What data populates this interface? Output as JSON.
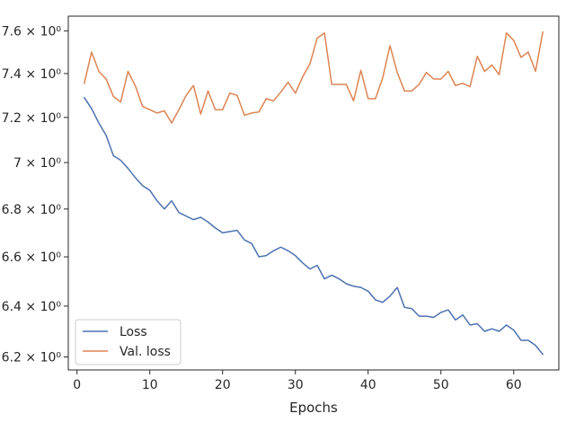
{
  "chart_data": {
    "type": "line",
    "title": "",
    "xlabel": "Epochs",
    "ylabel": "",
    "y_scale": "log",
    "xlim": [
      -1.2,
      66.2
    ],
    "ylim": [
      6.15,
      7.67
    ],
    "grid": false,
    "legend_position": "lower-left",
    "x_ticks": [
      0,
      10,
      20,
      30,
      40,
      50,
      60
    ],
    "x_tick_labels": [
      "0",
      "10",
      "20",
      "30",
      "40",
      "50",
      "60"
    ],
    "y_ticks": [
      6.2,
      6.4,
      6.6,
      6.8,
      7.0,
      7.2,
      7.4,
      7.6
    ],
    "y_tick_labels": [
      "6.2 × 10⁰",
      "6.4 × 10⁰",
      "6.6 × 10⁰",
      "6.8 × 10⁰",
      "7 × 10⁰",
      "7.2 × 10⁰",
      "7.4 × 10⁰",
      "7.6 × 10⁰"
    ],
    "x": [
      1,
      2,
      3,
      4,
      5,
      6,
      7,
      8,
      9,
      10,
      11,
      12,
      13,
      14,
      15,
      16,
      17,
      18,
      19,
      20,
      21,
      22,
      23,
      24,
      25,
      26,
      27,
      28,
      29,
      30,
      31,
      32,
      33,
      34,
      35,
      36,
      37,
      38,
      39,
      40,
      41,
      42,
      43,
      44,
      45,
      46,
      47,
      48,
      49,
      50,
      51,
      52,
      53,
      54,
      55,
      56,
      57,
      58,
      59,
      60,
      61,
      62,
      63,
      64
    ],
    "series": [
      {
        "name": "Loss",
        "color": "#4c72b0",
        "values": [
          7.29,
          7.24,
          7.175,
          7.12,
          7.03,
          7.01,
          6.975,
          6.935,
          6.9,
          6.88,
          6.835,
          6.8,
          6.835,
          6.785,
          6.77,
          6.755,
          6.765,
          6.745,
          6.72,
          6.7,
          6.705,
          6.71,
          6.67,
          6.655,
          6.6,
          6.605,
          6.625,
          6.64,
          6.625,
          6.605,
          6.575,
          6.55,
          6.565,
          6.51,
          6.525,
          6.51,
          6.49,
          6.48,
          6.475,
          6.46,
          6.425,
          6.415,
          6.44,
          6.475,
          6.395,
          6.39,
          6.36,
          6.36,
          6.355,
          6.375,
          6.385,
          6.345,
          6.365,
          6.325,
          6.33,
          6.3,
          6.31,
          6.3,
          6.325,
          6.305,
          6.265,
          6.265,
          6.245,
          6.21
        ]
      },
      {
        "name": "Val. loss",
        "color": "#dd8452",
        "values": [
          7.355,
          7.5,
          7.41,
          7.375,
          7.295,
          7.27,
          7.41,
          7.345,
          7.25,
          7.235,
          7.22,
          7.23,
          7.175,
          7.235,
          7.3,
          7.345,
          7.215,
          7.32,
          7.235,
          7.235,
          7.31,
          7.3,
          7.21,
          7.22,
          7.225,
          7.285,
          7.275,
          7.315,
          7.36,
          7.31,
          7.385,
          7.445,
          7.565,
          7.59,
          7.35,
          7.35,
          7.35,
          7.275,
          7.415,
          7.285,
          7.285,
          7.38,
          7.53,
          7.405,
          7.32,
          7.32,
          7.35,
          7.405,
          7.375,
          7.375,
          7.41,
          7.345,
          7.355,
          7.34,
          7.48,
          7.41,
          7.44,
          7.395,
          7.59,
          7.555,
          7.475,
          7.5,
          7.41,
          7.595
        ]
      }
    ]
  }
}
